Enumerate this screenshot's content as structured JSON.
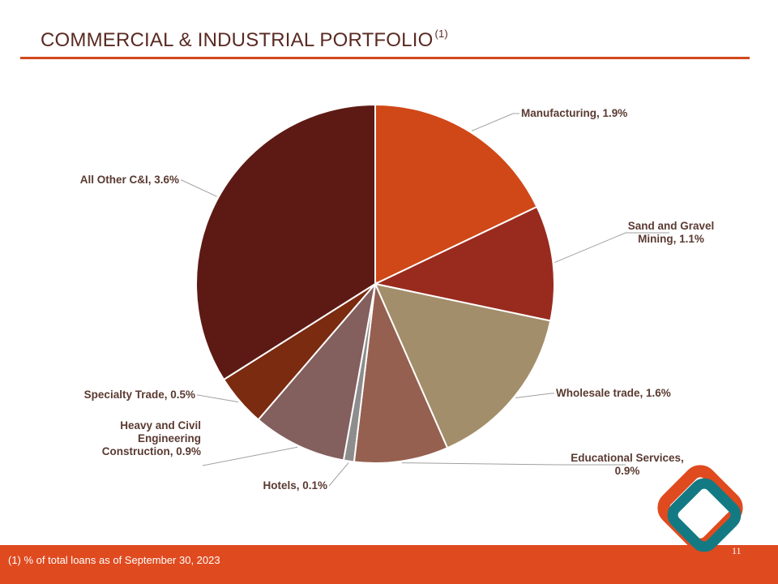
{
  "header": {
    "title": "COMMERCIAL & INDUSTRIAL PORTFOLIO",
    "title_note": "(1)"
  },
  "footer": {
    "footnote": "(1)  % of total loans as of September 30, 2023",
    "page_number": "11"
  },
  "colors": {
    "accent": "#e04a1f",
    "title": "#5a2a22"
  },
  "chart_data": {
    "type": "pie",
    "title": "",
    "unit": "% of total loans",
    "slices": [
      {
        "name": "Manufacturing",
        "value": 1.9,
        "label": [
          "Manufacturing, 1.9%"
        ],
        "color": "#d04817"
      },
      {
        "name": "Sand and Gravel Mining",
        "value": 1.1,
        "label": [
          "Sand and Gravel",
          "Mining, 1.1%"
        ],
        "color": "#992b1e"
      },
      {
        "name": "Wholesale trade",
        "value": 1.6,
        "label": [
          "Wholesale trade, 1.6%"
        ],
        "color": "#a38e6b"
      },
      {
        "name": "Educational Services",
        "value": 0.9,
        "label": [
          "Educational Services,",
          "0.9%"
        ],
        "color": "#95604f"
      },
      {
        "name": "Hotels",
        "value": 0.1,
        "label": [
          "Hotels, 0.1%"
        ],
        "color": "#8d8d8d"
      },
      {
        "name": "Heavy and Civil Engineering Construction",
        "value": 0.9,
        "label": [
          "Heavy and Civil",
          "Engineering",
          "Construction, 0.9%"
        ],
        "color": "#835f5e"
      },
      {
        "name": "Specialty Trade",
        "value": 0.5,
        "label": [
          "Specialty Trade, 0.5%"
        ],
        "color": "#7a2b10"
      },
      {
        "name": "All Other C&I",
        "value": 3.6,
        "label": [
          "All Other C&I, 3.6%"
        ],
        "color": "#5d1a14"
      }
    ]
  }
}
